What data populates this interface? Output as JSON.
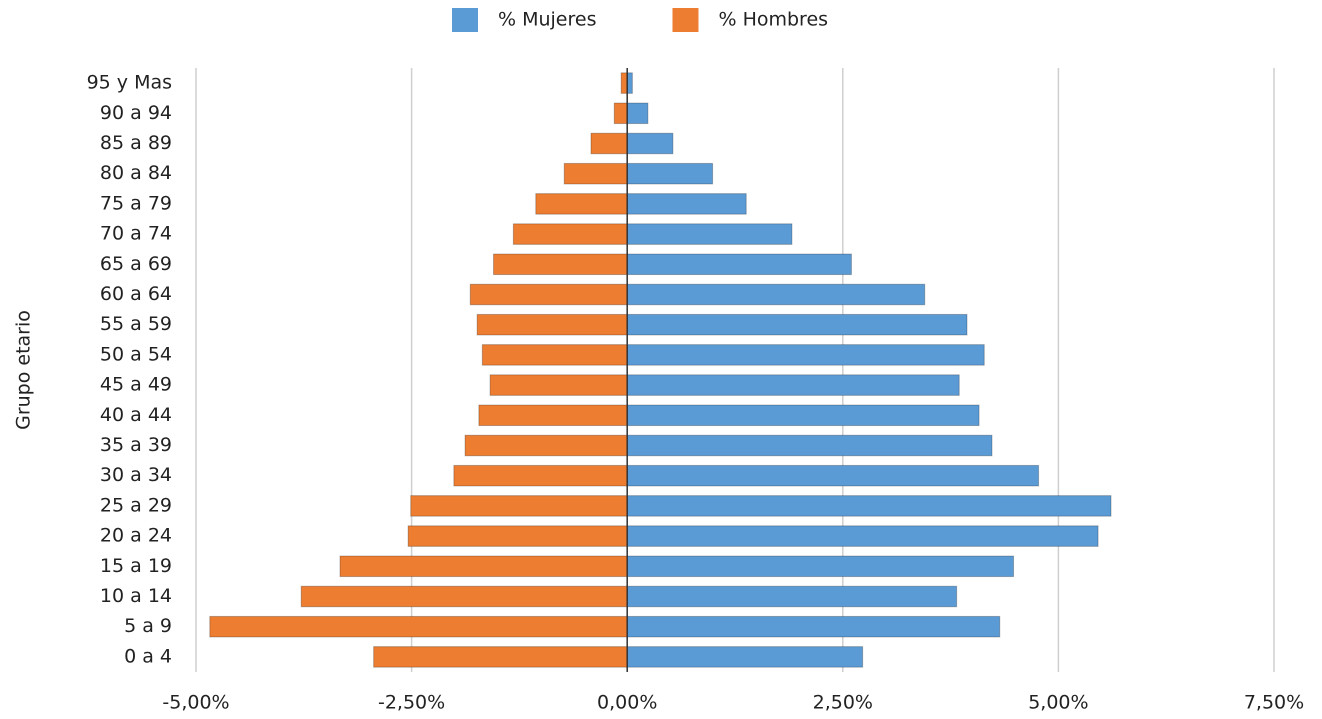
{
  "chart_data": {
    "type": "bar",
    "orientation": "horizontal",
    "ylabel": "Grupo etario",
    "categories": [
      "95 y Mas",
      "90 a 94",
      "85 a 89",
      "80 a 84",
      "75 a 79",
      "70 a 74",
      "65 a 69",
      "60 a 64",
      "55 a 59",
      "50 a 54",
      "45 a 49",
      "40 a 44",
      "35 a 39",
      "30 a 34",
      "25 a 29",
      "20 a 24",
      "15 a 19",
      "10 a 14",
      "5 a 9",
      "0 a 4"
    ],
    "series": [
      {
        "name": "% Mujeres",
        "color": "#5b9bd5",
        "values": [
          0.06,
          0.24,
          0.53,
          0.99,
          1.38,
          1.91,
          2.6,
          3.45,
          3.94,
          4.14,
          3.85,
          4.08,
          4.23,
          4.77,
          5.61,
          5.46,
          4.48,
          3.82,
          4.32,
          2.73
        ]
      },
      {
        "name": "% Hombres",
        "color": "#ed7d31",
        "values": [
          -0.07,
          -0.15,
          -0.42,
          -0.73,
          -1.06,
          -1.32,
          -1.55,
          -1.82,
          -1.74,
          -1.68,
          -1.59,
          -1.72,
          -1.88,
          -2.01,
          -2.51,
          -2.54,
          -3.33,
          -3.78,
          -4.84,
          -2.94
        ]
      }
    ],
    "xlim": [
      -5,
      7.5
    ],
    "xticks": [
      {
        "value": -5,
        "label": "-5,00%"
      },
      {
        "value": -2.5,
        "label": "-2,50%"
      },
      {
        "value": 0,
        "label": "0,00%"
      },
      {
        "value": 2.5,
        "label": "2,50%"
      },
      {
        "value": 5,
        "label": "5,00%"
      },
      {
        "value": 7.5,
        "label": "7,50%"
      }
    ],
    "grid": true,
    "legend": "top"
  }
}
